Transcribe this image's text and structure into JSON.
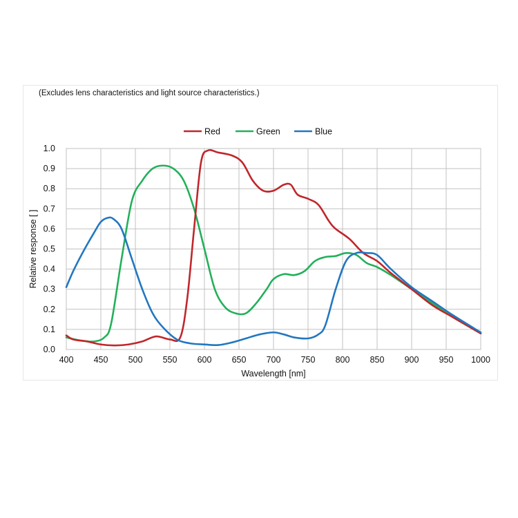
{
  "chart_data": {
    "type": "line",
    "note": "(Excludes lens characteristics and light source characteristics.)",
    "xlabel": "Wavelength [nm]",
    "ylabel": "Relative response [ ]",
    "xlim": [
      400,
      1000
    ],
    "ylim": [
      0.0,
      1.0
    ],
    "grid": true,
    "legend_position": "top-center",
    "x_ticks": [
      "400",
      "450",
      "500",
      "550",
      "600",
      "650",
      "700",
      "750",
      "800",
      "850",
      "900",
      "950",
      "1000"
    ],
    "y_ticks": [
      "0.0",
      "0.1",
      "0.2",
      "0.3",
      "0.4",
      "0.5",
      "0.6",
      "0.7",
      "0.8",
      "0.9",
      "1.0"
    ],
    "series": [
      {
        "name": "Red",
        "color": "#c0262b",
        "x": [
          400,
          410,
          430,
          450,
          470,
          490,
          510,
          530,
          550,
          565,
          575,
          585,
          595,
          605,
          620,
          640,
          655,
          670,
          685,
          700,
          715,
          725,
          735,
          750,
          765,
          780,
          790,
          810,
          830,
          850,
          870,
          900,
          930,
          960,
          1000
        ],
        "y": [
          0.07,
          0.05,
          0.04,
          0.025,
          0.02,
          0.025,
          0.04,
          0.065,
          0.05,
          0.06,
          0.25,
          0.6,
          0.93,
          0.99,
          0.98,
          0.965,
          0.93,
          0.84,
          0.79,
          0.79,
          0.82,
          0.82,
          0.77,
          0.75,
          0.72,
          0.64,
          0.6,
          0.55,
          0.48,
          0.44,
          0.38,
          0.3,
          0.22,
          0.16,
          0.08
        ]
      },
      {
        "name": "Green",
        "color": "#22b05a",
        "x": [
          400,
          420,
          440,
          455,
          465,
          480,
          495,
          510,
          525,
          540,
          555,
          570,
          585,
          600,
          615,
          630,
          645,
          660,
          675,
          690,
          700,
          715,
          730,
          745,
          760,
          775,
          790,
          805,
          820,
          835,
          850,
          870,
          900,
          930,
          960,
          1000
        ],
        "y": [
          0.06,
          0.045,
          0.04,
          0.06,
          0.13,
          0.45,
          0.74,
          0.84,
          0.9,
          0.915,
          0.9,
          0.84,
          0.7,
          0.5,
          0.3,
          0.21,
          0.18,
          0.18,
          0.23,
          0.3,
          0.35,
          0.375,
          0.37,
          0.39,
          0.44,
          0.46,
          0.465,
          0.48,
          0.47,
          0.43,
          0.41,
          0.37,
          0.3,
          0.23,
          0.16,
          0.08
        ]
      },
      {
        "name": "Blue",
        "color": "#2277c0",
        "x": [
          400,
          410,
          425,
          440,
          450,
          460,
          468,
          480,
          495,
          510,
          525,
          540,
          560,
          580,
          600,
          620,
          640,
          660,
          680,
          700,
          715,
          730,
          750,
          765,
          775,
          790,
          805,
          820,
          835,
          850,
          870,
          900,
          930,
          960,
          1000
        ],
        "y": [
          0.31,
          0.39,
          0.49,
          0.58,
          0.635,
          0.655,
          0.65,
          0.6,
          0.45,
          0.3,
          0.18,
          0.11,
          0.05,
          0.03,
          0.025,
          0.022,
          0.035,
          0.055,
          0.075,
          0.085,
          0.075,
          0.06,
          0.055,
          0.075,
          0.12,
          0.3,
          0.44,
          0.48,
          0.48,
          0.47,
          0.4,
          0.31,
          0.24,
          0.17,
          0.085
        ]
      }
    ]
  }
}
